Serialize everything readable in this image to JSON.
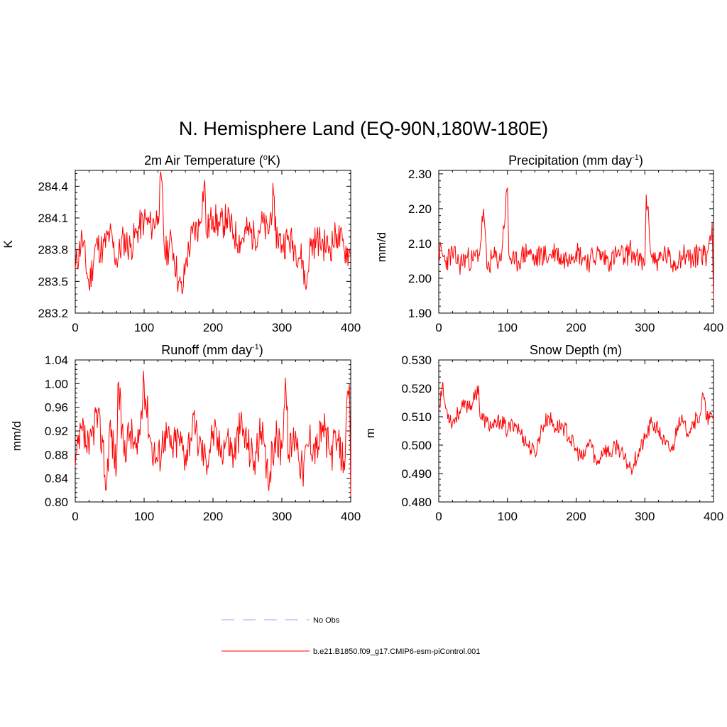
{
  "title": "N. Hemisphere Land (EQ-90N,180W-180E)",
  "legend": [
    {
      "label": "No Obs",
      "color": "#a0a0ff",
      "style": "dashed"
    },
    {
      "label": "b.e21.B1850.f09_g17.CMIP6-esm-piControl.001",
      "color": "#ff0000",
      "style": "solid"
    }
  ],
  "chart_data": [
    {
      "type": "line",
      "title": "2m Air Temperature (°K)",
      "title_parts": {
        "pre": "2m Air Temperature (",
        "sup": "o",
        "post": "K)"
      },
      "xlabel": "",
      "ylabel": "K",
      "xlim": [
        0,
        400
      ],
      "ylim": [
        283.2,
        284.55
      ],
      "xticks": [
        0,
        100,
        200,
        300,
        400
      ],
      "yticks": [
        283.2,
        283.5,
        283.8,
        284.1,
        284.4
      ],
      "ytick_labels": [
        "283.2",
        "283.5",
        "283.8",
        "284.1",
        "284.4"
      ],
      "series": [
        {
          "name": "b.e21.B1850.f09_g17.CMIP6-esm-piControl.001",
          "x": [
            0,
            10,
            20,
            30,
            40,
            50,
            60,
            70,
            80,
            90,
            100,
            110,
            120,
            125,
            130,
            140,
            150,
            155,
            160,
            170,
            180,
            188,
            190,
            200,
            210,
            220,
            230,
            240,
            250,
            260,
            270,
            280,
            288,
            290,
            300,
            310,
            320,
            330,
            335,
            340,
            350,
            360,
            370,
            380,
            390,
            400
          ],
          "y": [
            283.62,
            283.92,
            283.45,
            283.85,
            283.8,
            283.95,
            283.7,
            283.9,
            283.82,
            283.98,
            284.08,
            284.02,
            284.12,
            284.48,
            283.75,
            283.88,
            283.5,
            283.38,
            283.65,
            283.95,
            284.02,
            284.46,
            283.95,
            284.12,
            284.02,
            284.1,
            283.95,
            283.88,
            283.98,
            283.92,
            284.05,
            283.95,
            284.32,
            283.98,
            283.85,
            283.9,
            283.82,
            283.7,
            283.42,
            283.8,
            283.9,
            283.85,
            283.82,
            283.95,
            283.82,
            283.75
          ]
        }
      ]
    },
    {
      "type": "line",
      "title": "Precipitation (mm day-1)",
      "title_parts": {
        "pre": "Precipitation (mm day",
        "sup": "-1",
        "post": ")"
      },
      "xlabel": "",
      "ylabel": "mm/d",
      "xlim": [
        0,
        400
      ],
      "ylim": [
        1.9,
        2.31
      ],
      "xticks": [
        0,
        100,
        200,
        300,
        400
      ],
      "yticks": [
        1.9,
        2.0,
        2.1,
        2.2,
        2.3
      ],
      "ytick_labels": [
        "1.90",
        "2.00",
        "2.10",
        "2.20",
        "2.30"
      ],
      "series": [
        {
          "name": "b.e21.B1850.f09_g17.CMIP6-esm-piControl.001",
          "x": [
            0,
            10,
            20,
            30,
            40,
            50,
            60,
            65,
            70,
            80,
            90,
            100,
            102,
            110,
            120,
            130,
            140,
            150,
            160,
            170,
            180,
            190,
            200,
            210,
            220,
            230,
            240,
            250,
            260,
            270,
            280,
            290,
            300,
            302,
            310,
            320,
            330,
            340,
            350,
            360,
            370,
            380,
            390,
            398,
            400
          ],
          "y": [
            2.08,
            2.05,
            2.07,
            2.04,
            2.06,
            2.05,
            2.08,
            2.2,
            2.03,
            2.06,
            2.05,
            2.26,
            2.07,
            2.04,
            2.06,
            2.08,
            2.05,
            2.07,
            2.06,
            2.08,
            2.05,
            2.07,
            2.08,
            2.06,
            2.05,
            2.07,
            2.06,
            2.05,
            2.07,
            2.06,
            2.08,
            2.05,
            2.04,
            2.24,
            2.06,
            2.05,
            2.07,
            2.04,
            2.06,
            2.07,
            2.05,
            2.08,
            2.06,
            2.16,
            1.94
          ]
        }
      ]
    },
    {
      "type": "line",
      "title": "Runoff (mm day-1)",
      "title_parts": {
        "pre": "Runoff (mm day",
        "sup": "-1",
        "post": ")"
      },
      "xlabel": "",
      "ylabel": "mm/d",
      "xlim": [
        0,
        400
      ],
      "ylim": [
        0.8,
        1.04
      ],
      "xticks": [
        0,
        100,
        200,
        300,
        400
      ],
      "yticks": [
        0.8,
        0.84,
        0.88,
        0.92,
        0.96,
        1.0,
        1.04
      ],
      "ytick_labels": [
        "0.80",
        "0.84",
        "0.88",
        "0.92",
        "0.96",
        "1.00",
        "1.04"
      ],
      "series": [
        {
          "name": "b.e21.B1850.f09_g17.CMIP6-esm-piControl.001",
          "x": [
            0,
            10,
            20,
            30,
            40,
            45,
            50,
            60,
            62,
            70,
            80,
            90,
            100,
            110,
            120,
            130,
            140,
            150,
            160,
            170,
            180,
            190,
            200,
            210,
            220,
            230,
            240,
            250,
            260,
            270,
            280,
            290,
            300,
            305,
            310,
            320,
            330,
            340,
            350,
            360,
            370,
            380,
            390,
            398,
            400
          ],
          "y": [
            0.86,
            0.92,
            0.88,
            0.95,
            0.9,
            0.82,
            0.93,
            0.86,
            1.0,
            0.89,
            0.92,
            0.88,
            1.0,
            0.9,
            0.87,
            0.92,
            0.89,
            0.91,
            0.88,
            0.93,
            0.9,
            0.87,
            0.92,
            0.89,
            0.91,
            0.88,
            0.93,
            0.9,
            0.87,
            0.92,
            0.83,
            0.91,
            0.89,
            1.01,
            0.88,
            0.92,
            0.85,
            0.91,
            0.89,
            0.93,
            0.88,
            0.9,
            0.87,
            1.0,
            0.81
          ]
        }
      ]
    },
    {
      "type": "line",
      "title": "Snow Depth (m)",
      "title_parts": {
        "pre": "Snow Depth (m)",
        "sup": "",
        "post": ""
      },
      "xlabel": "",
      "ylabel": "m",
      "xlim": [
        0,
        400
      ],
      "ylim": [
        0.48,
        0.53
      ],
      "xticks": [
        0,
        100,
        200,
        300,
        400
      ],
      "yticks": [
        0.48,
        0.49,
        0.5,
        0.51,
        0.52,
        0.53
      ],
      "ytick_labels": [
        "0.480",
        "0.490",
        "0.500",
        "0.510",
        "0.520",
        "0.530"
      ],
      "series": [
        {
          "name": "b.e21.B1850.f09_g17.CMIP6-esm-piControl.001",
          "x": [
            0,
            5,
            10,
            20,
            30,
            40,
            50,
            58,
            60,
            70,
            80,
            90,
            100,
            110,
            120,
            130,
            140,
            150,
            160,
            170,
            180,
            190,
            200,
            210,
            220,
            230,
            240,
            250,
            260,
            270,
            280,
            290,
            300,
            310,
            320,
            330,
            340,
            350,
            360,
            370,
            380,
            385,
            390,
            400
          ],
          "y": [
            0.513,
            0.521,
            0.513,
            0.508,
            0.512,
            0.514,
            0.515,
            0.521,
            0.51,
            0.508,
            0.506,
            0.509,
            0.505,
            0.508,
            0.504,
            0.5,
            0.497,
            0.506,
            0.51,
            0.506,
            0.507,
            0.503,
            0.498,
            0.495,
            0.502,
            0.493,
            0.499,
            0.497,
            0.5,
            0.495,
            0.492,
            0.497,
            0.502,
            0.508,
            0.505,
            0.5,
            0.498,
            0.51,
            0.505,
            0.508,
            0.51,
            0.518,
            0.509,
            0.51
          ]
        }
      ]
    }
  ]
}
